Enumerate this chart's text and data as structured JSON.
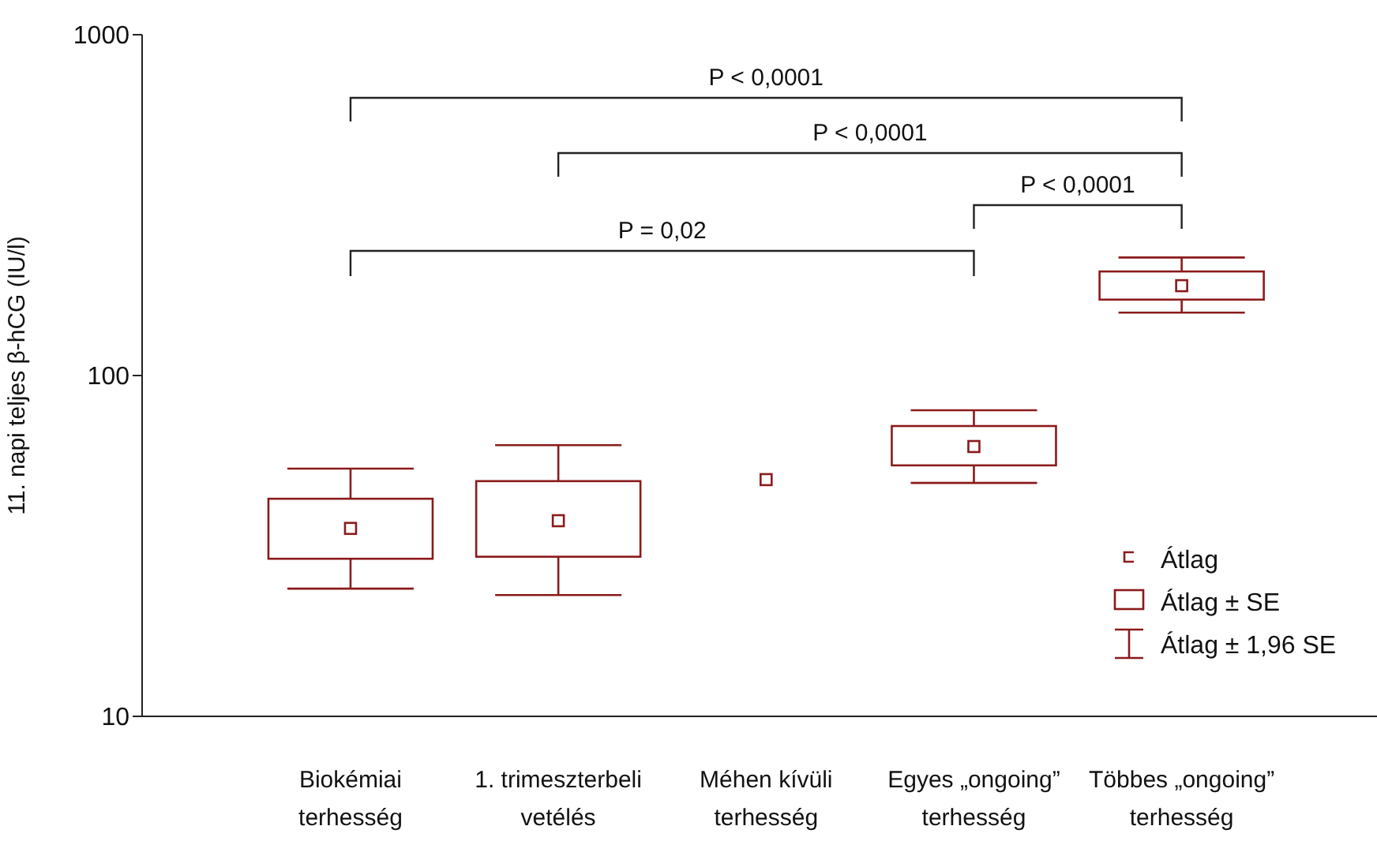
{
  "chart_data": {
    "type": "box",
    "ylabel": "11. napi teljes β-hCG (IU/l)",
    "log": true,
    "ylim": [
      10,
      1000
    ],
    "yticks": [
      10,
      100,
      1000
    ],
    "color": "#8b1a1a",
    "categories": [
      "Biokémiai terhesség",
      "1. trimeszterbeli vetélés",
      "Méhen kívüli terhesség",
      "Egyes „ongoing” terhesség",
      "Többes „ongoing” terhesség"
    ],
    "boxes": [
      {
        "low": 23.7,
        "q1": 29,
        "median": 35.6,
        "q3": 43.5,
        "high": 53.3
      },
      {
        "low": 22.7,
        "q1": 29.4,
        "median": 37.5,
        "q3": 49,
        "high": 62.5
      },
      null,
      {
        "low": 48.4,
        "q1": 54.5,
        "median": 61.9,
        "q3": 71.1,
        "high": 79.1
      },
      {
        "low": 153,
        "q1": 167,
        "median": 183.5,
        "q3": 202,
        "high": 222
      }
    ],
    "series": [
      {
        "type": "scatter",
        "x": [
          "Méhen kívüli terhesség"
        ],
        "values": [
          49.5
        ],
        "marker": "square"
      }
    ],
    "annotations": [
      "P < 0,0001",
      "P < 0,0001",
      "P < 0,0001",
      "P = 0,02",
      "Átlag",
      "Átlag ± SE",
      "Átlag ± 1,96 SE"
    ]
  }
}
